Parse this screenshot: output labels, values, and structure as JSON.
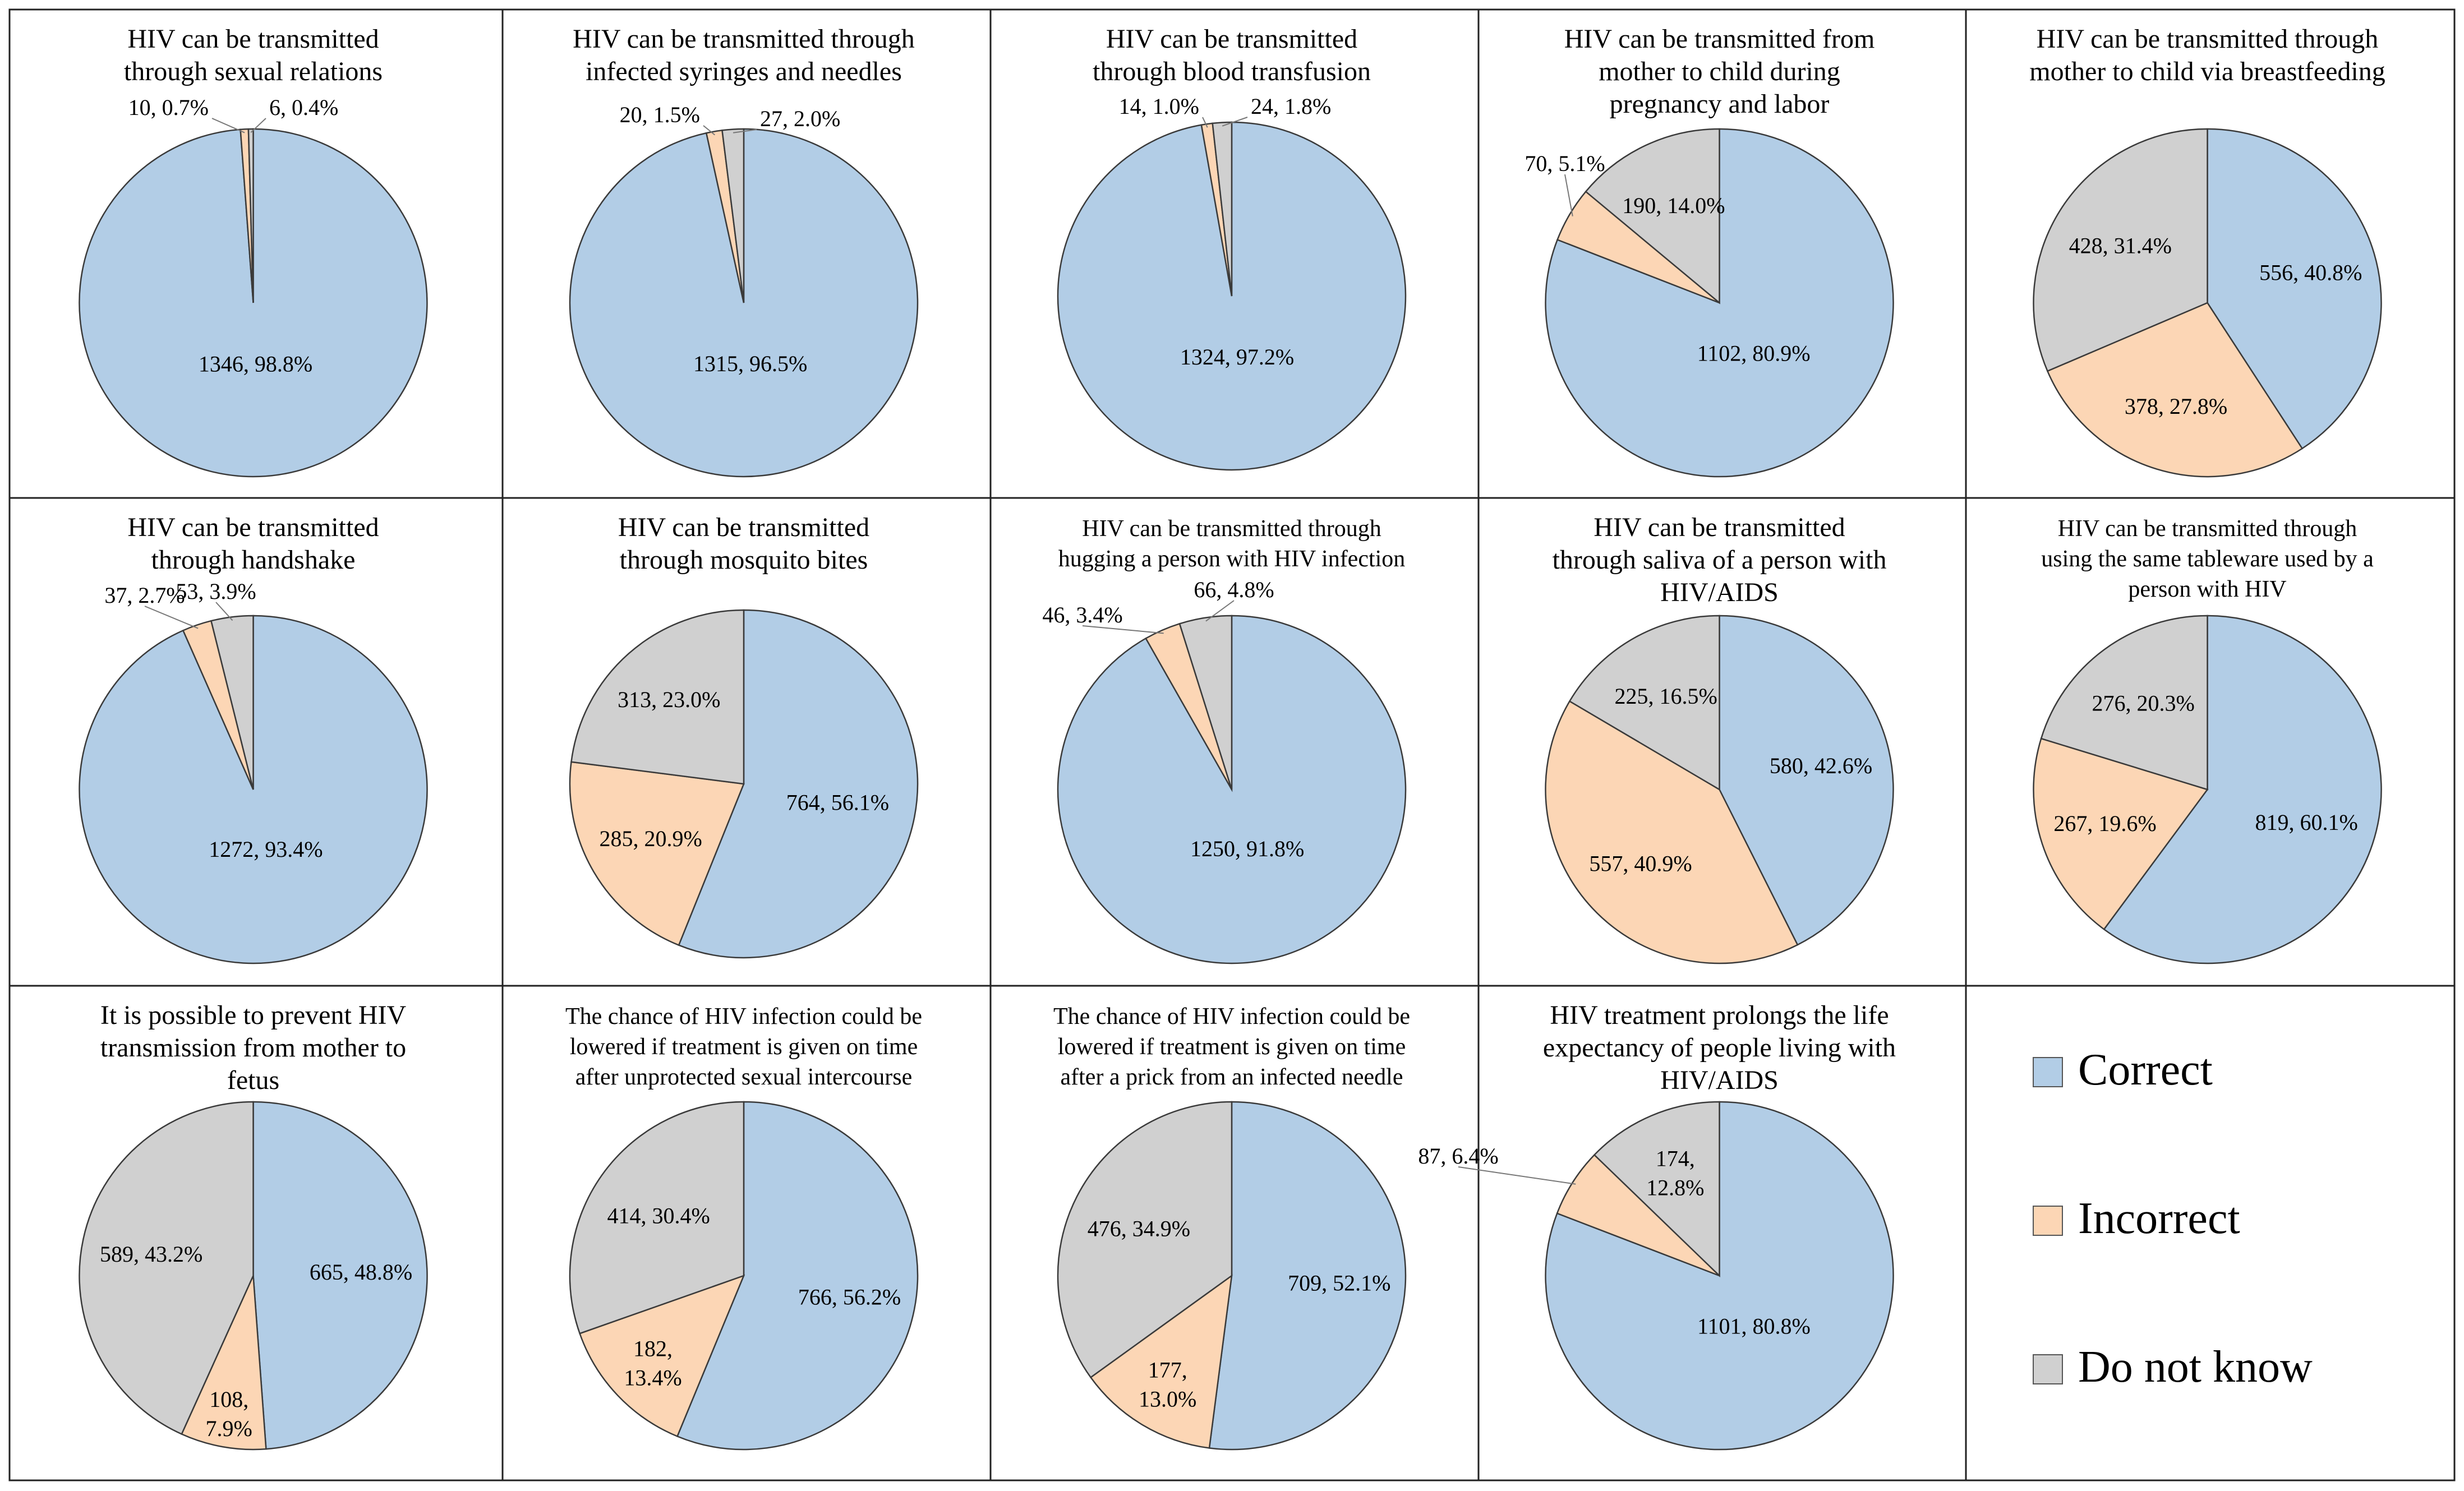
{
  "colors": {
    "correct": "#B2CDE6",
    "incorrect": "#FCD6B5",
    "dontknow": "#D0D0D0",
    "stroke": "#3a3a3a"
  },
  "legend": [
    {
      "key": "correct",
      "label": "Correct"
    },
    {
      "key": "incorrect",
      "label": "Incorrect"
    },
    {
      "key": "dontknow",
      "label": "Do not know"
    }
  ],
  "chart_data": [
    {
      "type": "pie",
      "title": [
        "HIV can be transmitted",
        "through sexual relations"
      ],
      "slices": [
        {
          "category": "Correct",
          "value": 1346,
          "label": "1346, 98.8%"
        },
        {
          "category": "Incorrect",
          "value": 10,
          "label": "10, 0.7%"
        },
        {
          "category": "Do not know",
          "value": 6,
          "label": "6, 0.4%"
        }
      ]
    },
    {
      "type": "pie",
      "title": [
        "HIV can be transmitted through",
        "infected syringes and needles"
      ],
      "slices": [
        {
          "category": "Correct",
          "value": 1315,
          "label": "1315, 96.5%"
        },
        {
          "category": "Incorrect",
          "value": 20,
          "label": "20, 1.5%"
        },
        {
          "category": "Do not know",
          "value": 27,
          "label": "27, 2.0%"
        }
      ]
    },
    {
      "type": "pie",
      "title": [
        "HIV can be transmitted",
        "through blood transfusion"
      ],
      "slices": [
        {
          "category": "Correct",
          "value": 1324,
          "label": "1324, 97.2%"
        },
        {
          "category": "Incorrect",
          "value": 14,
          "label": "14, 1.0%"
        },
        {
          "category": "Do not know",
          "value": 24,
          "label": "24, 1.8%"
        }
      ]
    },
    {
      "type": "pie",
      "title": [
        "HIV can be transmitted from",
        "mother to child during",
        "pregnancy and labor"
      ],
      "slices": [
        {
          "category": "Correct",
          "value": 1102,
          "label": "1102, 80.9%"
        },
        {
          "category": "Incorrect",
          "value": 70,
          "label": "70, 5.1%"
        },
        {
          "category": "Do not know",
          "value": 190,
          "label": "190, 14.0%"
        }
      ]
    },
    {
      "type": "pie",
      "title": [
        "HIV can be transmitted through",
        "mother to child via breastfeeding"
      ],
      "slices": [
        {
          "category": "Correct",
          "value": 556,
          "label": "556, 40.8%"
        },
        {
          "category": "Incorrect",
          "value": 378,
          "label": "378, 27.8%"
        },
        {
          "category": "Do not know",
          "value": 428,
          "label": "428, 31.4%"
        }
      ]
    },
    {
      "type": "pie",
      "title": [
        "HIV can be transmitted",
        "through handshake"
      ],
      "slices": [
        {
          "category": "Correct",
          "value": 1272,
          "label": "1272, 93.4%"
        },
        {
          "category": "Incorrect",
          "value": 37,
          "label": "37, 2.7%"
        },
        {
          "category": "Do not know",
          "value": 53,
          "label": "53, 3.9%"
        }
      ]
    },
    {
      "type": "pie",
      "title": [
        "HIV can be transmitted",
        "through mosquito bites"
      ],
      "slices": [
        {
          "category": "Correct",
          "value": 764,
          "label": "764, 56.1%"
        },
        {
          "category": "Incorrect",
          "value": 285,
          "label": "285, 20.9%"
        },
        {
          "category": "Do not know",
          "value": 313,
          "label": "313, 23.0%"
        }
      ]
    },
    {
      "type": "pie",
      "title": [
        "HIV can be transmitted through",
        "hugging a person with HIV infection"
      ],
      "slices": [
        {
          "category": "Correct",
          "value": 1250,
          "label": "1250, 91.8%"
        },
        {
          "category": "Incorrect",
          "value": 46,
          "label": "46, 3.4%"
        },
        {
          "category": "Do not know",
          "value": 66,
          "label": "66, 4.8%"
        }
      ]
    },
    {
      "type": "pie",
      "title": [
        "HIV can be transmitted",
        "through saliva of a person with",
        "HIV/AIDS"
      ],
      "slices": [
        {
          "category": "Correct",
          "value": 580,
          "label": "580, 42.6%"
        },
        {
          "category": "Incorrect",
          "value": 557,
          "label": "557, 40.9%"
        },
        {
          "category": "Do not know",
          "value": 225,
          "label": "225, 16.5%"
        }
      ]
    },
    {
      "type": "pie",
      "title": [
        "HIV can be transmitted through",
        "using the same tableware used by a",
        "person with HIV"
      ],
      "slices": [
        {
          "category": "Correct",
          "value": 819,
          "label": "819, 60.1%"
        },
        {
          "category": "Incorrect",
          "value": 267,
          "label": "267, 19.6%"
        },
        {
          "category": "Do not know",
          "value": 276,
          "label": "276, 20.3%"
        }
      ]
    },
    {
      "type": "pie",
      "title": [
        "It is possible to prevent HIV",
        "transmission from mother to",
        "fetus"
      ],
      "slices": [
        {
          "category": "Correct",
          "value": 665,
          "label": "665, 48.8%"
        },
        {
          "category": "Incorrect",
          "value": 108,
          "label": "108, 7.9%"
        },
        {
          "category": "Do not know",
          "value": 589,
          "label": "589, 43.2%"
        }
      ]
    },
    {
      "type": "pie",
      "title": [
        "The chance of HIV infection could be",
        "lowered if treatment is given on time",
        "after unprotected sexual intercourse"
      ],
      "slices": [
        {
          "category": "Correct",
          "value": 766,
          "label": "766, 56.2%"
        },
        {
          "category": "Incorrect",
          "value": 182,
          "label": "182, 13.4%"
        },
        {
          "category": "Do not know",
          "value": 414,
          "label": "414, 30.4%"
        }
      ]
    },
    {
      "type": "pie",
      "title": [
        "The chance of HIV infection could be",
        "lowered if treatment is given on time",
        "after a prick from an infected needle"
      ],
      "slices": [
        {
          "category": "Correct",
          "value": 709,
          "label": "709, 52.1%"
        },
        {
          "category": "Incorrect",
          "value": 177,
          "label": "177, 13.0%"
        },
        {
          "category": "Do not know",
          "value": 476,
          "label": "476, 34.9%"
        }
      ]
    },
    {
      "type": "pie",
      "title": [
        "HIV treatment prolongs the life",
        "expectancy of people living with",
        "HIV/AIDS"
      ],
      "slices": [
        {
          "category": "Correct",
          "value": 1101,
          "label": "1101, 80.8%"
        },
        {
          "category": "Incorrect",
          "value": 87,
          "label": "87, 6.4%"
        },
        {
          "category": "Do not know",
          "value": 174,
          "label": "174, 12.8%"
        }
      ]
    }
  ]
}
